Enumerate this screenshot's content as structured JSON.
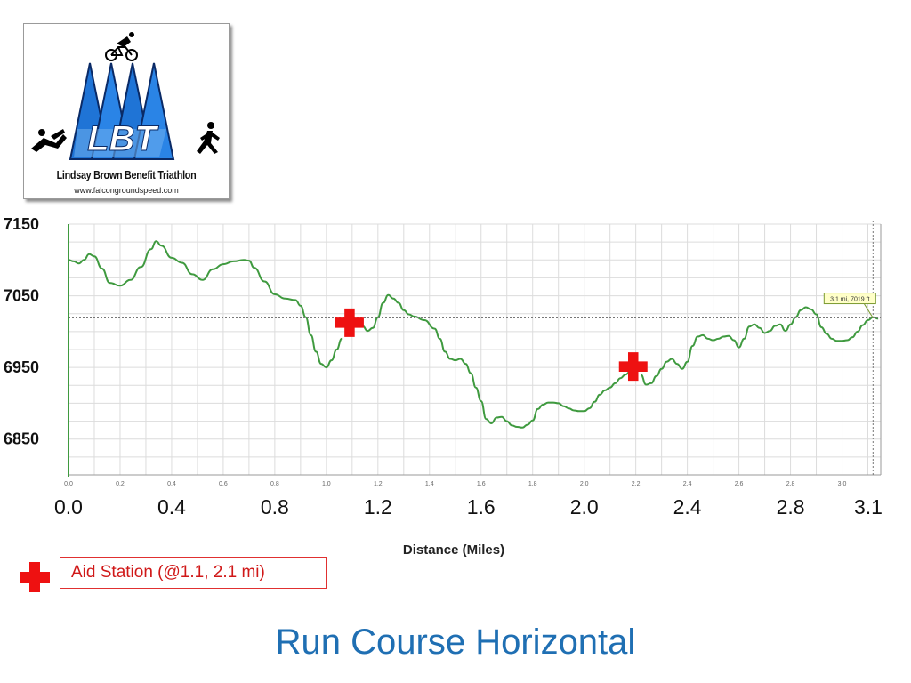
{
  "logo": {
    "letters": "LBT",
    "name": "Lindsay Brown Benefit Triathlon",
    "url": "www.falcongroundspeed.com"
  },
  "chart_data": {
    "type": "line",
    "xlabel": "Distance (Miles)",
    "ylabel": "",
    "ylim": [
      6800,
      7150
    ],
    "xlim": [
      0,
      3.15
    ],
    "y_ticks": [
      "7150",
      "7050",
      "6950",
      "6850"
    ],
    "x_ticks_major": [
      "0.0",
      "0.4",
      "0.8",
      "1.2",
      "1.6",
      "2.0",
      "2.4",
      "2.8",
      "3.1"
    ],
    "x_ticks_minor": [
      "0.0",
      "0.2",
      "0.4",
      "0.6",
      "0.8",
      "1.0",
      "1.2",
      "1.4",
      "1.6",
      "1.8",
      "2.0",
      "2.2",
      "2.4",
      "2.6",
      "2.8",
      "3.0"
    ],
    "series": [
      {
        "color": "#3f9a3f",
        "x": [
          0.0,
          0.02,
          0.04,
          0.06,
          0.08,
          0.1,
          0.13,
          0.16,
          0.2,
          0.24,
          0.28,
          0.32,
          0.34,
          0.36,
          0.4,
          0.44,
          0.48,
          0.52,
          0.56,
          0.6,
          0.64,
          0.68,
          0.7,
          0.72,
          0.76,
          0.8,
          0.84,
          0.88,
          0.9,
          0.92,
          0.94,
          0.96,
          0.98,
          1.0,
          1.02,
          1.04,
          1.06,
          1.1,
          1.12,
          1.14,
          1.16,
          1.18,
          1.2,
          1.22,
          1.24,
          1.26,
          1.28,
          1.3,
          1.32,
          1.34,
          1.38,
          1.42,
          1.44,
          1.46,
          1.48,
          1.5,
          1.52,
          1.54,
          1.56,
          1.58,
          1.6,
          1.62,
          1.64,
          1.66,
          1.68,
          1.7,
          1.72,
          1.74,
          1.76,
          1.78,
          1.8,
          1.82,
          1.84,
          1.86,
          1.88,
          1.9,
          1.92,
          1.94,
          1.96,
          1.98,
          2.0,
          2.02,
          2.04,
          2.06,
          2.08,
          2.1,
          2.12,
          2.14,
          2.16,
          2.18,
          2.22,
          2.24,
          2.26,
          2.28,
          2.3,
          2.32,
          2.34,
          2.36,
          2.38,
          2.4,
          2.42,
          2.44,
          2.46,
          2.48,
          2.5,
          2.52,
          2.54,
          2.56,
          2.58,
          2.6,
          2.62,
          2.64,
          2.66,
          2.68,
          2.7,
          2.72,
          2.74,
          2.76,
          2.78,
          2.8,
          2.82,
          2.84,
          2.86,
          2.88,
          2.9,
          2.92,
          2.94,
          2.96,
          2.98,
          3.0,
          3.02,
          3.04,
          3.06,
          3.08,
          3.1,
          3.12,
          3.14
        ],
        "y": [
          7100,
          7098,
          7095,
          7100,
          7108,
          7105,
          7088,
          7068,
          7064,
          7072,
          7090,
          7115,
          7126,
          7120,
          7103,
          7096,
          7080,
          7072,
          7087,
          7094,
          7098,
          7100,
          7099,
          7089,
          7070,
          7052,
          7046,
          7044,
          7036,
          7020,
          6995,
          6972,
          6955,
          6950,
          6960,
          6975,
          6990,
          7010,
          7014,
          7008,
          7001,
          7005,
          7020,
          7040,
          7051,
          7046,
          7040,
          7030,
          7024,
          7021,
          7016,
          7004,
          6990,
          6972,
          6962,
          6960,
          6962,
          6955,
          6942,
          6922,
          6903,
          6878,
          6872,
          6880,
          6881,
          6875,
          6869,
          6867,
          6866,
          6870,
          6876,
          6892,
          6898,
          6901,
          6901,
          6900,
          6896,
          6893,
          6890,
          6889,
          6889,
          6893,
          6902,
          6912,
          6918,
          6922,
          6928,
          6935,
          6940,
          6945,
          6940,
          6926,
          6928,
          6938,
          6948,
          6958,
          6962,
          6955,
          6948,
          6958,
          6980,
          6993,
          6995,
          6990,
          6988,
          6990,
          6993,
          6994,
          6988,
          6978,
          6990,
          7007,
          7010,
          7005,
          6998,
          7001,
          7008,
          7010,
          7001,
          7010,
          7020,
          7030,
          7034,
          7031,
          7024,
          7006,
          6997,
          6990,
          6987,
          6987,
          6988,
          6992,
          7000,
          7009,
          7016,
          7020,
          7018
        ]
      }
    ],
    "gaps": [
      [
        1.06,
        1.1
      ],
      [
        2.18,
        2.22
      ]
    ],
    "reference": {
      "x": 3.12,
      "y": 7019,
      "label": "3.1 mi, 7019 ft"
    },
    "aid_stations": [
      1.1,
      2.1
    ],
    "grid": true
  },
  "legend": {
    "label": "Aid Station (@1.1, 2.1 mi)",
    "marker_color": "#ee1111",
    "icon": "red-cross-icon"
  },
  "title": "Run Course Horizontal",
  "colors": {
    "title": "#1f6fb3",
    "line": "#3f9a3f",
    "aid": "#ee1111"
  }
}
